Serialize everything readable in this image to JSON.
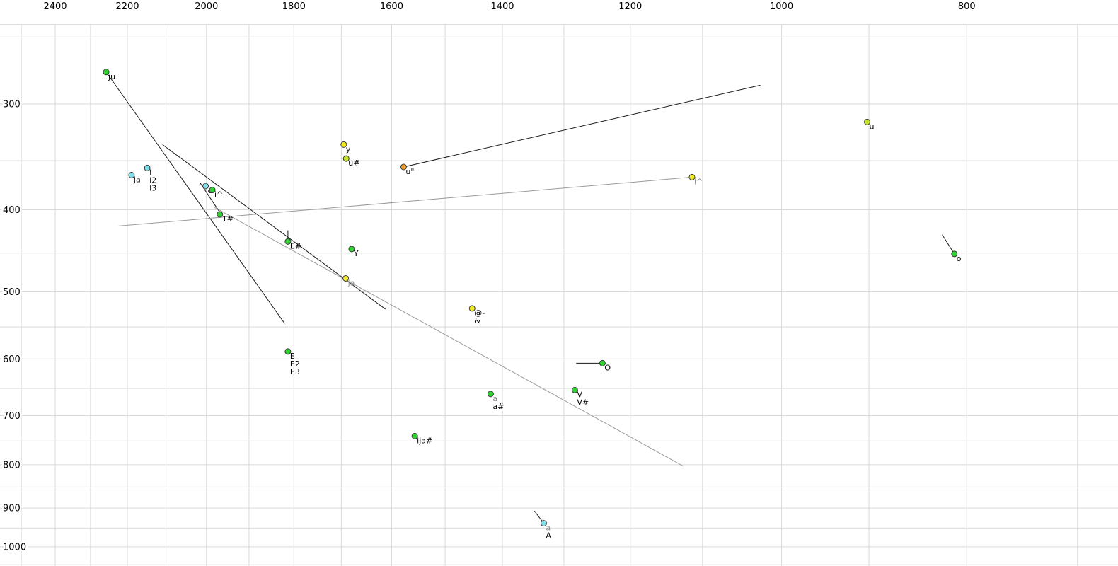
{
  "chart_data": {
    "type": "scatter",
    "title": "",
    "xlabel": "",
    "ylabel": "",
    "x_axis": {
      "position": "top",
      "scale": "log",
      "direction": "reversed",
      "ticks": [
        2400,
        2200,
        2000,
        1800,
        1600,
        1400,
        1200,
        1000,
        800
      ],
      "grid_min": 700,
      "grid_max": 2500,
      "grid_step": 100
    },
    "y_axis": {
      "position": "left",
      "scale": "log",
      "direction": "down-increasing",
      "ticks": [
        300,
        400,
        500,
        600,
        700,
        800,
        900,
        1000
      ],
      "grid_min": 250,
      "grid_max": 1050,
      "grid_step": 50
    },
    "grid": true,
    "legend": false,
    "points": [
      {
        "f2": 2257,
        "f1": 275,
        "color": "green",
        "labels": [
          {
            "text": "ju"
          }
        ]
      },
      {
        "f2": 902,
        "f1": 315,
        "color": "yellowgreen",
        "labels": [
          {
            "text": "u"
          }
        ]
      },
      {
        "f2": 1695,
        "f1": 335,
        "color": "yellow",
        "labels": [
          {
            "text": "y"
          }
        ]
      },
      {
        "f2": 1690,
        "f1": 348,
        "color": "yellowgreen",
        "labels": [
          {
            "text": "u#"
          }
        ]
      },
      {
        "f2": 1577,
        "f1": 356,
        "color": "orange",
        "labels": [
          {
            "text": "u\""
          }
        ]
      },
      {
        "f2": 2189,
        "f1": 364,
        "color": "cyan",
        "labels": [
          {
            "text": "ja"
          }
        ]
      },
      {
        "f2": 2148,
        "f1": 357,
        "color": "cyan",
        "labels": [
          {
            "text": "I"
          },
          {
            "text": "I2"
          },
          {
            "text": "I3"
          }
        ]
      },
      {
        "f2": 2002,
        "f1": 375,
        "color": "cyan",
        "labels": [
          {
            "text": "e"
          }
        ]
      },
      {
        "f2": 1986,
        "f1": 379,
        "color": "green",
        "labels": [
          {
            "text": "i^"
          }
        ]
      },
      {
        "f2": 1968,
        "f1": 405,
        "color": "green",
        "labels": [
          {
            "text": "1#"
          }
        ]
      },
      {
        "f2": 1813,
        "f1": 436,
        "color": "green",
        "labels": [
          {
            "text": "E#"
          }
        ]
      },
      {
        "f2": 1679,
        "f1": 445,
        "color": "green",
        "labels": [
          {
            "text": "Y"
          }
        ]
      },
      {
        "f2": 1691,
        "f1": 482,
        "color": "yellow",
        "labels": [
          {
            "text": "ja",
            "muted": true
          }
        ]
      },
      {
        "f2": 1452,
        "f1": 523,
        "color": "yellow",
        "labels": [
          {
            "text": "@-"
          },
          {
            "text": "&"
          }
        ]
      },
      {
        "f2": 1813,
        "f1": 588,
        "color": "green",
        "labels": [
          {
            "text": "E"
          },
          {
            "text": "E2"
          },
          {
            "text": "E3"
          }
        ]
      },
      {
        "f2": 1241,
        "f1": 607,
        "color": "green",
        "labels": [
          {
            "text": "O"
          }
        ]
      },
      {
        "f2": 1283,
        "f1": 653,
        "color": "green",
        "labels": [
          {
            "text": "V"
          },
          {
            "text": "V#"
          }
        ]
      },
      {
        "f2": 1420,
        "f1": 660,
        "color": "green",
        "labels": [
          {
            "text": "a",
            "muted": true
          },
          {
            "text": "a#"
          }
        ]
      },
      {
        "f2": 1556,
        "f1": 740,
        "color": "green",
        "labels": [
          {
            "text": "ija#"
          }
        ]
      },
      {
        "f2": 1332,
        "f1": 938,
        "color": "cyan",
        "labels": [
          {
            "text": "a",
            "muted": true
          },
          {
            "text": "A"
          }
        ]
      },
      {
        "f2": 812,
        "f1": 451,
        "color": "green",
        "labels": [
          {
            "text": "o"
          }
        ]
      },
      {
        "f2": 1114,
        "f1": 366,
        "color": "yellow",
        "labels": [
          {
            "text": "i^",
            "muted": true
          }
        ]
      }
    ],
    "segments": [
      {
        "a": [
          2257,
          275
        ],
        "b": [
          1820,
          545
        ],
        "color": "black"
      },
      {
        "a": [
          2109,
          335
        ],
        "b": [
          1612,
          524
        ],
        "color": "black"
      },
      {
        "a": [
          2015,
          372
        ],
        "b": [
          1962,
          407
        ],
        "color": "black"
      },
      {
        "a": [
          1577,
          356
        ],
        "b": [
          1026,
          285
        ],
        "color": "black"
      },
      {
        "a": [
          2223,
          418
        ],
        "b": [
          1114,
          366
        ],
        "color": "gray"
      },
      {
        "a": [
          1982,
          397
        ],
        "b": [
          1127,
          802
        ],
        "color": "gray"
      },
      {
        "a": [
          1281,
          607
        ],
        "b": [
          1243,
          607
        ],
        "color": "black"
      },
      {
        "a": [
          824,
          428
        ],
        "b": [
          812,
          451
        ],
        "color": "black"
      },
      {
        "a": [
          1347,
          907
        ],
        "b": [
          1332,
          938
        ],
        "color": "black"
      },
      {
        "a": [
          1813,
          423
        ],
        "b": [
          1813,
          436
        ],
        "color": "black"
      }
    ],
    "colors": {
      "green": "#2fd32f",
      "yellow": "#f0ea28",
      "yellowgreen": "#c4e428",
      "cyan": "#7fdfe8",
      "orange": "#f29b20",
      "dot_stroke": "#3a3a3a",
      "label": "#000000",
      "label_muted": "#909090",
      "axis_text": "#000000",
      "grid": "#d9d9d9",
      "top_border": "#c0c0c0",
      "line_black": "#1a1a1a",
      "line_gray": "#9a9a9a",
      "background": "#ffffff"
    }
  }
}
